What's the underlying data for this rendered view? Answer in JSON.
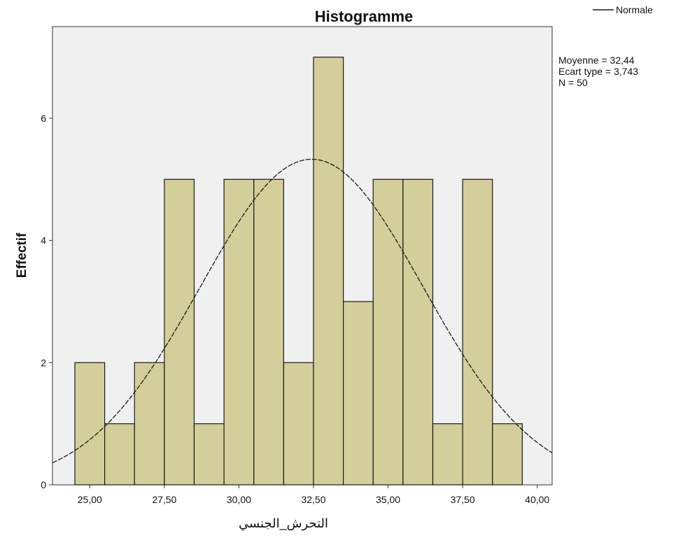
{
  "chart_data": {
    "type": "bar",
    "title": "Histogramme",
    "xlabel": "التحرش_الجنسي",
    "ylabel": "Effectif",
    "xlim": [
      23.75,
      40.5
    ],
    "ylim": [
      0,
      7.5
    ],
    "x_ticks": [
      25,
      27.5,
      30,
      32.5,
      35,
      37.5,
      40
    ],
    "x_tick_labels": [
      "25,00",
      "27,50",
      "30,00",
      "32,50",
      "35,00",
      "37,50",
      "40,00"
    ],
    "y_ticks": [
      0,
      2,
      4,
      6
    ],
    "y_tick_labels": [
      "0",
      "2",
      "4",
      "6"
    ],
    "bin_width": 1,
    "bins": [
      {
        "center": 25,
        "count": 2
      },
      {
        "center": 26,
        "count": 1
      },
      {
        "center": 27,
        "count": 2
      },
      {
        "center": 28,
        "count": 5
      },
      {
        "center": 29,
        "count": 1
      },
      {
        "center": 30,
        "count": 5
      },
      {
        "center": 31,
        "count": 5
      },
      {
        "center": 32,
        "count": 2
      },
      {
        "center": 33,
        "count": 7
      },
      {
        "center": 34,
        "count": 3
      },
      {
        "center": 35,
        "count": 5
      },
      {
        "center": 36,
        "count": 5
      },
      {
        "center": 37,
        "count": 1
      },
      {
        "center": 38,
        "count": 5
      },
      {
        "center": 39,
        "count": 1
      }
    ],
    "normal_curve": {
      "mean": 32.44,
      "sd": 3.743,
      "n": 50
    },
    "stats": [
      "Moyenne = 32,44",
      "Ecart type = 3,743",
      "N = 50"
    ],
    "legend": {
      "label": "Normale",
      "position": "top-right"
    },
    "colors": {
      "plot_background": "#f0f0f0",
      "bar_fill": "#d3ce9a",
      "bar_stroke": "#1a1a1a",
      "curve": "#1a1a1a"
    },
    "grid": false
  }
}
